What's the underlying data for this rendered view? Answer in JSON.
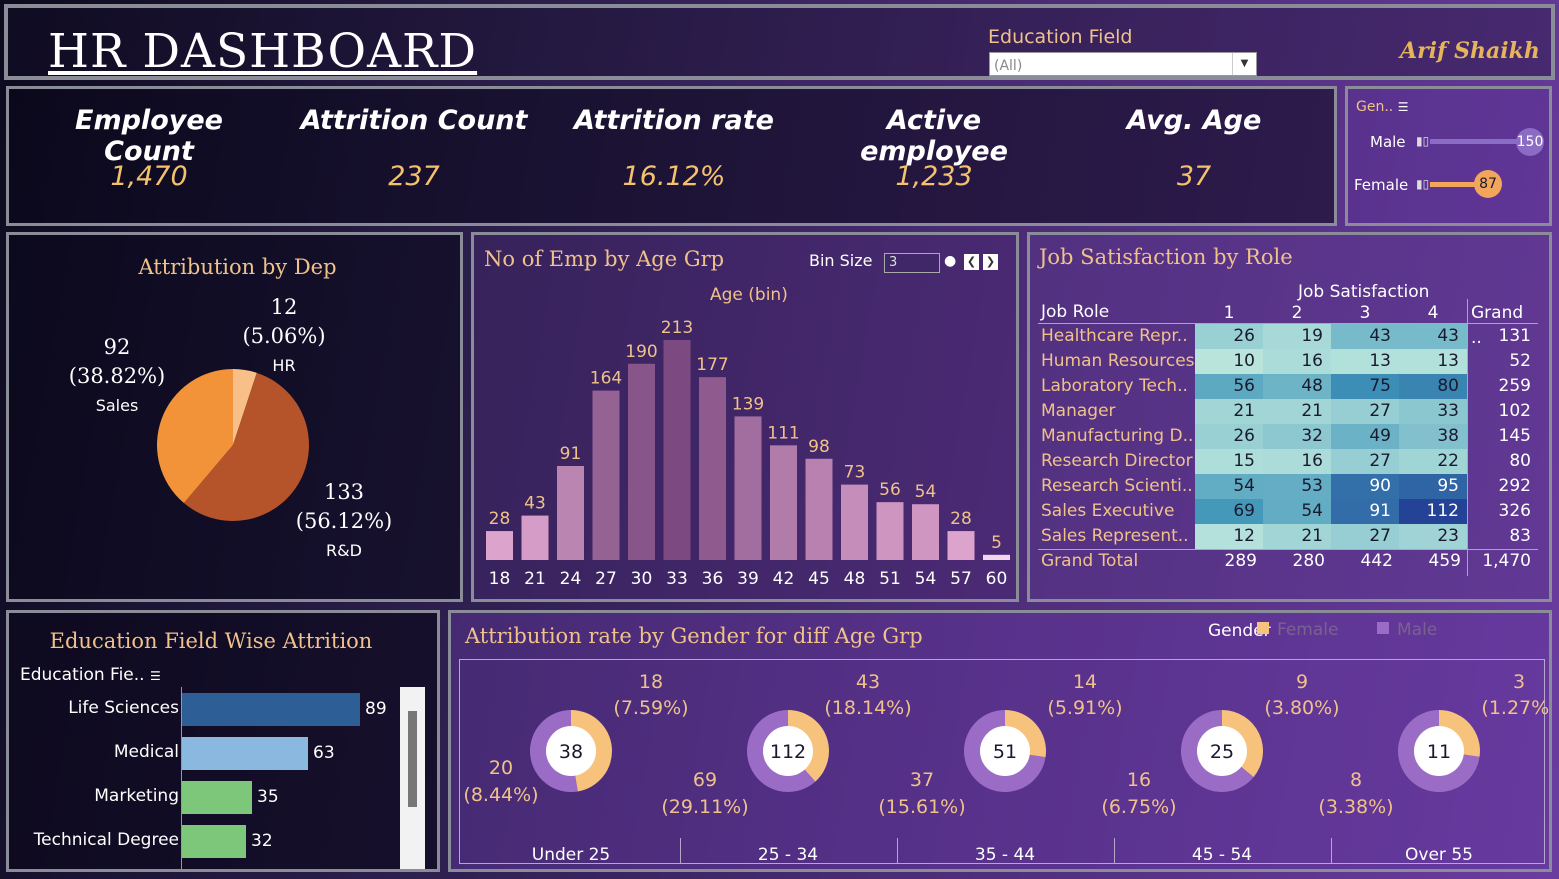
{
  "header": {
    "title": "HR DASHBOARD",
    "filter_label": "Education Field",
    "filter_value": "(All)",
    "author": "Arif Shaikh"
  },
  "kpis": [
    {
      "label": "Employee Count",
      "value": "1,470"
    },
    {
      "label": "Attrition Count",
      "value": "237"
    },
    {
      "label": "Attrition rate",
      "value": "16.12%"
    },
    {
      "label": "Active employee",
      "value": "1,233"
    },
    {
      "label": "Avg. Age",
      "value": "37"
    }
  ],
  "gender_filter": {
    "title": "Gen..",
    "items": [
      {
        "label": "Male",
        "value": 150,
        "value_label": "150"
      },
      {
        "label": "Female",
        "value": 87,
        "value_label": "87"
      }
    ]
  },
  "colors": {
    "orange_light": "#f5a45a",
    "orange_dark": "#b5532a",
    "peach": "#f6c27c",
    "purple": "#9b6cc6",
    "label_gold": "#f0c28a",
    "value_gold": "#f5c16c"
  },
  "chart_data": [
    {
      "type": "pie",
      "title": "Attribution by Dep",
      "categories": [
        "HR",
        "Sales",
        "R&D"
      ],
      "values": [
        12,
        92,
        133
      ],
      "value_labels": [
        "12",
        "92",
        "133"
      ],
      "percent_labels": [
        "(5.06%)",
        "(38.82%)",
        "(56.12%)"
      ],
      "colors": [
        "#f8c088",
        "#f29339",
        "#b5532a"
      ]
    },
    {
      "type": "bar",
      "title": "No of Emp by Age Grp",
      "xlabel": "Age (bin)",
      "bin_size_label": "Bin Size",
      "bin_size": "3",
      "categories": [
        "18",
        "21",
        "24",
        "27",
        "30",
        "33",
        "36",
        "39",
        "42",
        "45",
        "48",
        "51",
        "54",
        "57",
        "60"
      ],
      "values": [
        28,
        43,
        91,
        164,
        190,
        213,
        177,
        139,
        111,
        98,
        73,
        56,
        54,
        28,
        5
      ],
      "ylim": [
        0,
        213
      ]
    },
    {
      "type": "table",
      "title": "Job Satisfaction by Role",
      "column_header": "Job Satisfaction",
      "row_header": "Job Role",
      "columns": [
        "1",
        "2",
        "3",
        "4"
      ],
      "grand_label": "Grand ..",
      "rows": [
        {
          "role": "Healthcare Repr..",
          "values": [
            26,
            19,
            43,
            43
          ],
          "total": "131"
        },
        {
          "role": "Human Resources",
          "values": [
            10,
            16,
            13,
            13
          ],
          "total": "52"
        },
        {
          "role": "Laboratory Tech..",
          "values": [
            56,
            48,
            75,
            80
          ],
          "total": "259"
        },
        {
          "role": "Manager",
          "values": [
            21,
            21,
            27,
            33
          ],
          "total": "102"
        },
        {
          "role": "Manufacturing D..",
          "values": [
            26,
            32,
            49,
            38
          ],
          "total": "145"
        },
        {
          "role": "Research Director",
          "values": [
            15,
            16,
            27,
            22
          ],
          "total": "80"
        },
        {
          "role": "Research Scienti..",
          "values": [
            54,
            53,
            90,
            95
          ],
          "total": "292"
        },
        {
          "role": "Sales Executive",
          "values": [
            69,
            54,
            91,
            112
          ],
          "total": "326"
        },
        {
          "role": "Sales Represent..",
          "values": [
            12,
            21,
            27,
            23
          ],
          "total": "83"
        }
      ],
      "grand_total": {
        "label": "Grand Total",
        "values": [
          "289",
          "280",
          "442",
          "459"
        ],
        "total": "1,470"
      }
    },
    {
      "type": "bar",
      "title": "Education Field Wise Attrition",
      "header": "Education Fie..",
      "categories": [
        "Life Sciences",
        "Medical",
        "Marketing",
        "Technical Degree"
      ],
      "values": [
        89,
        63,
        35,
        32
      ],
      "colors": [
        "#2d5f96",
        "#8ab8de",
        "#7cc77a",
        "#7cc77a"
      ]
    },
    {
      "type": "pie",
      "title": "Attribution rate by Gender for diff Age Grp",
      "legend_title": "Gender",
      "legend": [
        "Female",
        "Male"
      ],
      "groups": [
        {
          "name": "Under 25",
          "total": "38",
          "female": 18,
          "female_label": "18",
          "female_pct": "(7.59%)",
          "male": 20,
          "male_label": "20",
          "male_pct": "(8.44%)"
        },
        {
          "name": "25 - 34",
          "total": "112",
          "female": 43,
          "female_label": "43",
          "female_pct": "(18.14%)",
          "male": 69,
          "male_label": "69",
          "male_pct": "(29.11%)"
        },
        {
          "name": "35 - 44",
          "total": "51",
          "female": 14,
          "female_label": "14",
          "female_pct": "(5.91%)",
          "male": 37,
          "male_label": "37",
          "male_pct": "(15.61%)"
        },
        {
          "name": "45 - 54",
          "total": "25",
          "female": 9,
          "female_label": "9",
          "female_pct": "(3.80%)",
          "male": 16,
          "male_label": "16",
          "male_pct": "(6.75%)"
        },
        {
          "name": "Over 55",
          "total": "11",
          "female": 3,
          "female_label": "3",
          "female_pct": "(1.27%)",
          "male": 8,
          "male_label": "8",
          "male_pct": "(3.38%)"
        }
      ]
    }
  ]
}
